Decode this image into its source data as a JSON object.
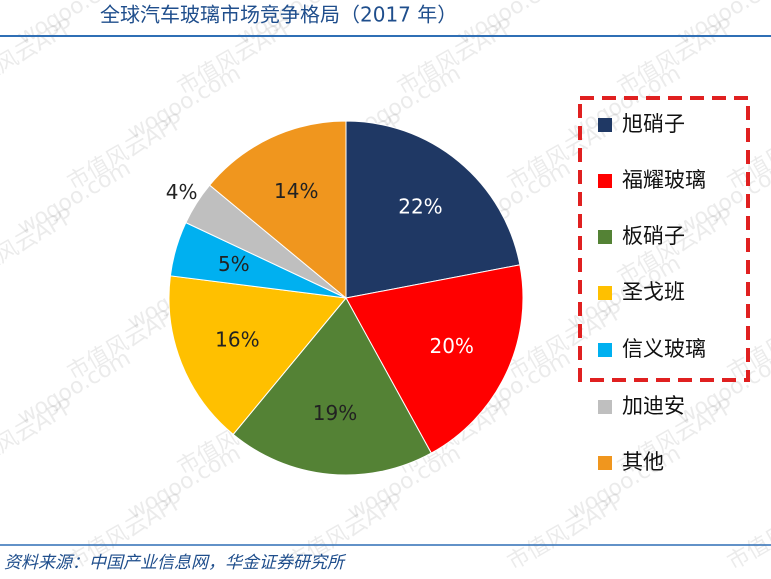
{
  "chart_data": {
    "type": "pie",
    "title": "全球汽车玻璃市场竞争格局（2017 年）",
    "source": "资料来源：中国产业信息网，华金证券研究所",
    "watermark": "市值风云APP",
    "watermark_url": "wogoo.com",
    "categories": [
      "旭硝子",
      "福耀玻璃",
      "板硝子",
      "圣戈班",
      "信义玻璃",
      "加迪安",
      "其他"
    ],
    "values": [
      22,
      20,
      19,
      16,
      5,
      4,
      14
    ],
    "value_labels": [
      "22%",
      "20%",
      "19%",
      "16%",
      "5%",
      "4%",
      "14%"
    ],
    "colors": [
      "#1f3864",
      "#ff0000",
      "#548235",
      "#ffc000",
      "#00b0f0",
      "#bfbfbf",
      "#f0961e"
    ],
    "legend": "right"
  }
}
